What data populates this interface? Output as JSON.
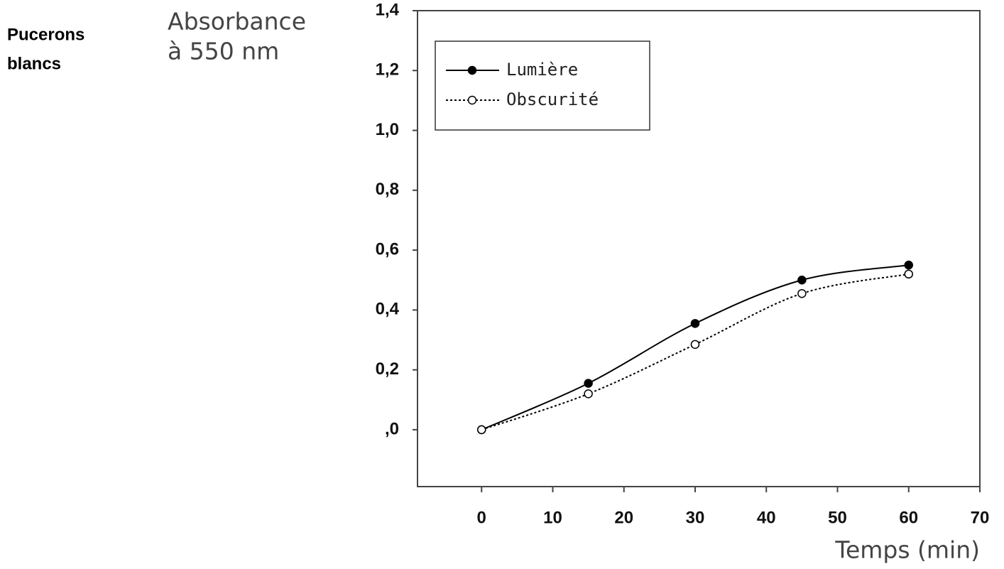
{
  "chart_data": {
    "type": "line",
    "side_label": [
      "Pucerons",
      "blancs"
    ],
    "y_label": [
      "Absorbance",
      "à 550 nm"
    ],
    "x_label": "Temps (min)",
    "x": [
      0,
      15,
      30,
      45,
      60
    ],
    "series": [
      {
        "name": "Lumière",
        "color": "#000000",
        "line_style": "solid",
        "marker": "filled",
        "values": [
          0,
          0.155,
          0.355,
          0.5,
          0.55
        ]
      },
      {
        "name": "Obscurité",
        "color": "#000000",
        "line_style": "dotted",
        "marker": "open",
        "values": [
          0,
          0.12,
          0.285,
          0.455,
          0.52
        ]
      }
    ],
    "xlim": [
      -9,
      70
    ],
    "ylim": [
      -0.19,
      1.4
    ],
    "xticks": [
      0,
      10,
      20,
      30,
      40,
      50,
      60,
      70
    ],
    "yticks": [
      {
        "value": 0,
        "label": ",0"
      },
      {
        "value": 0.2,
        "label": "0,2"
      },
      {
        "value": 0.4,
        "label": "0,4"
      },
      {
        "value": 0.6,
        "label": "0,6"
      },
      {
        "value": 0.8,
        "label": "0,8"
      },
      {
        "value": 1.0,
        "label": "1,0"
      },
      {
        "value": 1.2,
        "label": "1,2"
      },
      {
        "value": 1.4,
        "label": "1,4"
      }
    ],
    "legend": "upper-left"
  }
}
